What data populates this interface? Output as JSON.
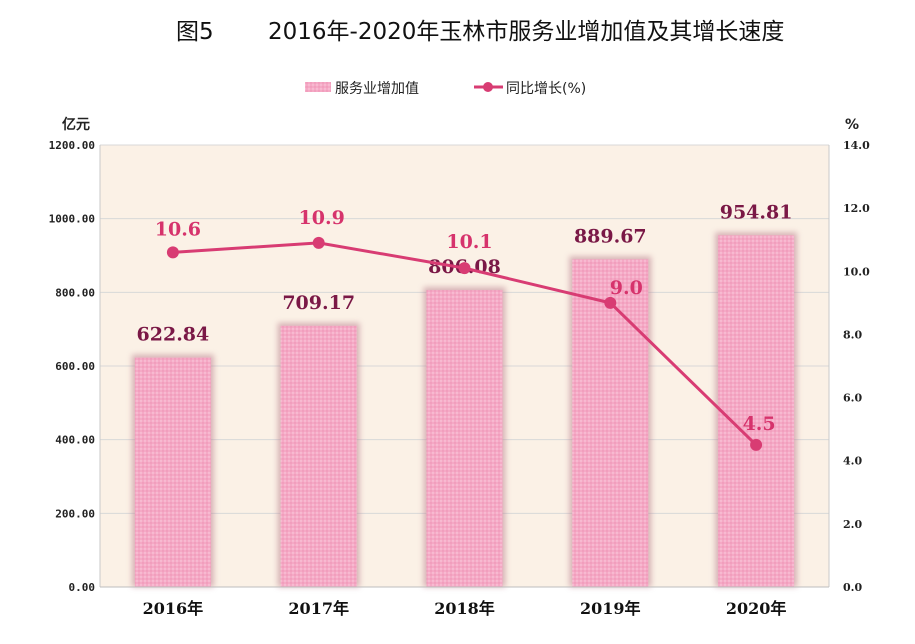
{
  "figure": {
    "prefix": "图5",
    "title": "2016年-2020年玉林市服务业增加值及其增长速度"
  },
  "chart_data": {
    "type": "bar",
    "categories": [
      "2016年",
      "2017年",
      "2018年",
      "2019年",
      "2020年"
    ],
    "series": [
      {
        "name": "服务业增加值",
        "type": "bar",
        "axis": "left",
        "values": [
          622.84,
          709.17,
          806.08,
          889.67,
          954.81
        ],
        "labels": [
          "622.84",
          "709.17",
          "806.08",
          "889.67",
          "954.81"
        ]
      },
      {
        "name": "同比增长(%)",
        "type": "line",
        "axis": "right",
        "values": [
          10.6,
          10.9,
          10.1,
          9.0,
          4.5
        ],
        "labels": [
          "10.6",
          "10.9",
          "10.1",
          "9.0",
          "4.5"
        ]
      }
    ],
    "y_left": {
      "unit": "亿元",
      "ylim": [
        0,
        1200
      ],
      "ticks": [
        "0.00",
        "200.00",
        "400.00",
        "600.00",
        "800.00",
        "1000.00",
        "1200.00"
      ]
    },
    "y_right": {
      "unit": "%",
      "ylim": [
        0,
        14
      ],
      "ticks": [
        "0.0",
        "2.0",
        "4.0",
        "6.0",
        "8.0",
        "10.0",
        "12.0",
        "14.0"
      ]
    },
    "legend": "top-center",
    "grid": true
  },
  "colors": {
    "bar": "#f4a8c4",
    "bar_label": "#7a1846",
    "line": "#d83c73",
    "line_label": "#d6336c",
    "plot_bg": "#fbf1e6",
    "grid": "#d8d8d8"
  }
}
